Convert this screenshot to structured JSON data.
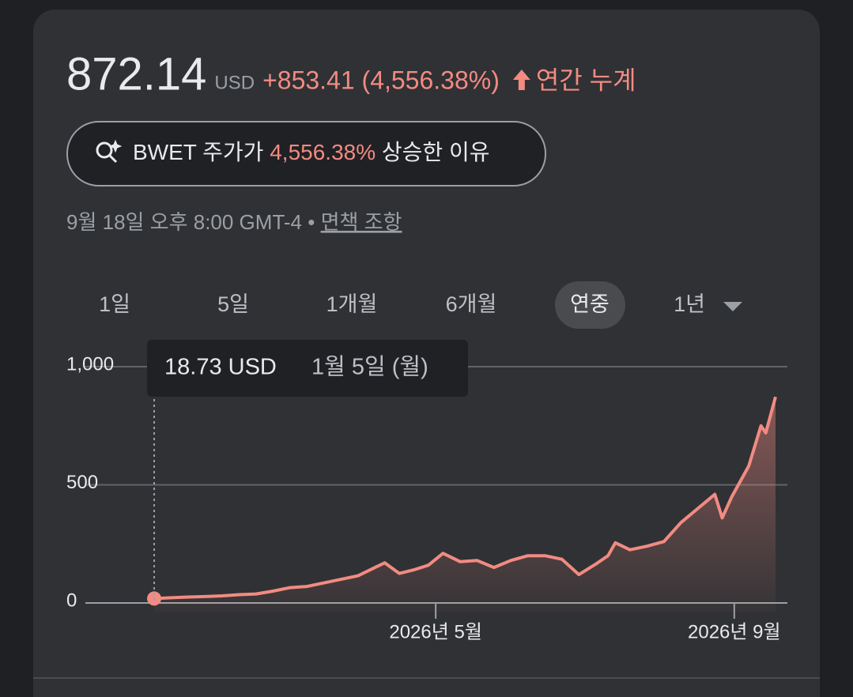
{
  "header": {
    "price": "872.14",
    "currency": "USD",
    "change": "+853.41 (4,556.38%)",
    "period": "연간 누계"
  },
  "button": {
    "prefix": "BWET 주가가",
    "percent": "4,556.38%",
    "suffix": "상승한 이유"
  },
  "timestamp": {
    "text": "9월 18일 오후 8:00 GMT-4 •",
    "link": "면책 조항"
  },
  "tabs": [
    "1일",
    "5일",
    "1개월",
    "6개월",
    "연중",
    "1년"
  ],
  "tooltip": {
    "value": "18.73 USD",
    "date": "1월 5일 (월)"
  },
  "chart_data": {
    "type": "line",
    "color": "#f28b82",
    "x": [
      "2026-01-05",
      "2026-01-12",
      "2026-01-19",
      "2026-01-26",
      "2026-02-02",
      "2026-02-09",
      "2026-02-16",
      "2026-02-23",
      "2026-03-02",
      "2026-03-09",
      "2026-03-16",
      "2026-03-23",
      "2026-03-30",
      "2026-04-06",
      "2026-04-10",
      "2026-04-16",
      "2026-04-22",
      "2026-04-28",
      "2026-05-04",
      "2026-05-11",
      "2026-05-18",
      "2026-05-25",
      "2026-06-01",
      "2026-06-08",
      "2026-06-15",
      "2026-06-22",
      "2026-06-29",
      "2026-07-06",
      "2026-07-11",
      "2026-07-14",
      "2026-07-20",
      "2026-07-27",
      "2026-08-03",
      "2026-08-10",
      "2026-08-17",
      "2026-08-24",
      "2026-08-27",
      "2026-08-31",
      "2026-09-07",
      "2026-09-12",
      "2026-09-14",
      "2026-09-18"
    ],
    "values": [
      18.73,
      22,
      25,
      27,
      30,
      35,
      38,
      50,
      65,
      70,
      85,
      100,
      115,
      150,
      170,
      125,
      140,
      160,
      210,
      175,
      180,
      150,
      180,
      200,
      200,
      185,
      120,
      165,
      200,
      255,
      225,
      240,
      260,
      340,
      400,
      460,
      360,
      450,
      580,
      750,
      720,
      872.14
    ],
    "xlim": [
      "2026-01-05",
      "2026-09-18"
    ],
    "xticks": [
      {
        "value": "2026-05-01",
        "label": "2026년 5월"
      },
      {
        "value": "2026-09-01",
        "label": "2026년 9월"
      }
    ],
    "ylim": [
      0,
      1000
    ],
    "yticks": [
      0,
      500,
      {
        "value": 1000,
        "label": "1,000"
      }
    ],
    "grid": true
  }
}
